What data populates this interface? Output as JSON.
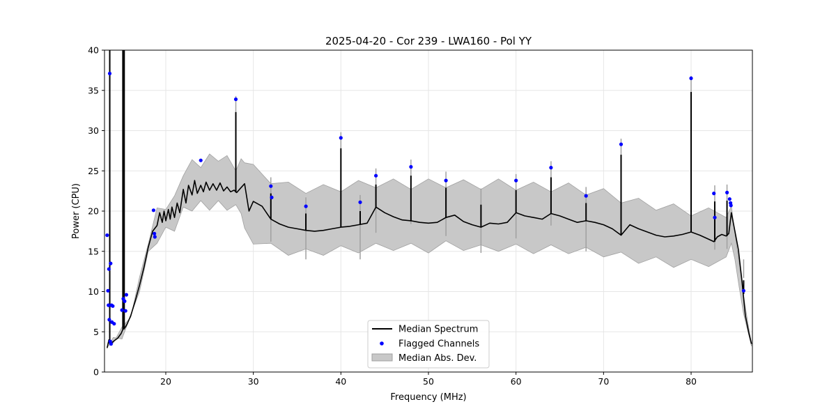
{
  "chart_data": {
    "type": "line",
    "title": "2025-04-20 - Cor 239 - LWA160 - Pol YY",
    "xlabel": "Frequency (MHz)",
    "ylabel": "Power (CPU)",
    "xlim": [
      13,
      87
    ],
    "ylim": [
      0,
      40
    ],
    "xticks": [
      20,
      30,
      40,
      50,
      60,
      70,
      80
    ],
    "yticks": [
      0,
      5,
      10,
      15,
      20,
      25,
      30,
      35,
      40
    ],
    "grid": true,
    "legend": {
      "placement": "bottom-center",
      "entries": [
        "Median Spectrum",
        "Flagged Channels",
        "Median Abs. Dev."
      ]
    },
    "colors": {
      "median": "#000000",
      "flagged": "#0000ff",
      "mad_fill": "#c8c8c8",
      "mad_edge": "#a0a0a0"
    },
    "series": [
      {
        "name": "Median Spectrum",
        "x": [
          13.3,
          13.5,
          13.55,
          13.7,
          14,
          14.5,
          14.9,
          15.1,
          15.4,
          15.6,
          16,
          16.5,
          17,
          17.5,
          18,
          18.5,
          19,
          19.3,
          19.6,
          19.8,
          20,
          20.3,
          20.5,
          20.7,
          21,
          21.3,
          21.6,
          22,
          22.3,
          22.6,
          23,
          23.3,
          23.6,
          24,
          24.3,
          24.6,
          25,
          25.4,
          25.8,
          26.2,
          26.6,
          27,
          27.4,
          27.8,
          28.1,
          28.5,
          29,
          29.5,
          30,
          31,
          32,
          33,
          34,
          35,
          36,
          37,
          38,
          39,
          40,
          41,
          42,
          43,
          44,
          45,
          46,
          47,
          48,
          49,
          50,
          51,
          52,
          53,
          54,
          55,
          56,
          57,
          58,
          59,
          60,
          61,
          62,
          63,
          64,
          65,
          66,
          67,
          68,
          69,
          70,
          71,
          72,
          73,
          74,
          75,
          76,
          77,
          78,
          79,
          80,
          81,
          82,
          82.6,
          83,
          83.5,
          84,
          84.3,
          84.6,
          85,
          85.4,
          85.8,
          86.2,
          86.6,
          86.9
        ],
        "y": [
          3.0,
          4.0,
          3.6,
          3.5,
          3.8,
          4.2,
          4.8,
          5.3,
          5.6,
          6.0,
          7.0,
          8.8,
          10.8,
          13.0,
          15.5,
          17.5,
          18.2,
          19.8,
          18.6,
          20.0,
          18.8,
          20.2,
          19.0,
          20.5,
          19.2,
          21.0,
          19.8,
          22.7,
          21.0,
          23.2,
          22.0,
          23.8,
          22.2,
          23.2,
          22.4,
          23.6,
          22.6,
          23.4,
          22.6,
          23.5,
          22.5,
          23.0,
          22.4,
          22.6,
          22.3,
          22.8,
          23.4,
          20.0,
          21.2,
          20.6,
          19.0,
          18.4,
          18.0,
          17.8,
          17.6,
          17.5,
          17.6,
          17.8,
          18.0,
          18.1,
          18.3,
          18.5,
          20.5,
          19.8,
          19.3,
          18.9,
          18.8,
          18.6,
          18.5,
          18.6,
          19.2,
          19.5,
          18.7,
          18.3,
          18.0,
          18.5,
          18.4,
          18.6,
          19.8,
          19.4,
          19.2,
          19.0,
          19.7,
          19.4,
          19.0,
          18.6,
          18.8,
          18.6,
          18.3,
          17.8,
          17.0,
          18.3,
          17.8,
          17.4,
          17.0,
          16.8,
          16.9,
          17.1,
          17.4,
          17.0,
          16.5,
          16.2,
          16.8,
          17.1,
          16.9,
          17.2,
          19.8,
          17.5,
          15.2,
          11.4,
          7.0,
          4.8,
          3.5
        ],
        "spikes": [
          {
            "x": 13.6,
            "y": 40.0
          },
          {
            "x": 15.1,
            "y": 40.0
          },
          {
            "x": 15.25,
            "y": 40.0
          },
          {
            "x": 28.0,
            "y": 32.3
          },
          {
            "x": 32.0,
            "y": 22.2
          },
          {
            "x": 36.0,
            "y": 19.7
          },
          {
            "x": 40.0,
            "y": 27.8
          },
          {
            "x": 42.2,
            "y": 20.0
          },
          {
            "x": 44.0,
            "y": 23.3
          },
          {
            "x": 48.0,
            "y": 24.4
          },
          {
            "x": 52.0,
            "y": 22.9
          },
          {
            "x": 56.0,
            "y": 20.8
          },
          {
            "x": 60.0,
            "y": 22.6
          },
          {
            "x": 64.0,
            "y": 24.2
          },
          {
            "x": 68.0,
            "y": 21.0
          },
          {
            "x": 72.0,
            "y": 27.0
          },
          {
            "x": 80.0,
            "y": 34.8
          },
          {
            "x": 82.7,
            "y": 21.2
          },
          {
            "x": 84.1,
            "y": 21.3
          },
          {
            "x": 86.0,
            "y": 9.7
          }
        ]
      },
      {
        "name": "Median Abs. Dev.",
        "x": [
          13.3,
          14,
          15,
          16,
          17,
          18,
          19,
          20,
          21,
          22,
          23,
          24,
          25,
          26,
          27,
          28,
          28.6,
          29,
          30,
          32,
          34,
          36,
          38,
          40,
          42,
          44,
          46,
          48,
          50,
          52,
          54,
          56,
          58,
          60,
          62,
          64,
          66,
          68,
          70,
          72,
          74,
          76,
          78,
          80,
          82,
          84,
          84.6,
          85,
          85.5,
          86,
          86.5,
          86.9
        ],
        "upper": [
          3.2,
          4.2,
          5.0,
          7.4,
          11.2,
          16.5,
          19.8,
          20.8,
          21.3,
          25.0,
          25.8,
          26.0,
          26.5,
          26.8,
          26.3,
          25.6,
          25.9,
          26.6,
          25.2,
          24.0,
          23.0,
          22.8,
          22.7,
          23.0,
          23.2,
          23.5,
          23.4,
          23.3,
          23.4,
          23.5,
          23.3,
          23.3,
          23.4,
          23.2,
          23.0,
          23.0,
          22.9,
          22.6,
          22.2,
          21.6,
          21.0,
          20.7,
          20.3,
          20.0,
          19.8,
          19.8,
          20.6,
          17.2,
          13.5,
          9.5,
          6.0,
          3.6
        ],
        "lower": [
          3.0,
          3.8,
          4.6,
          6.6,
          10.5,
          14.5,
          16.5,
          17.5,
          18.0,
          20.0,
          20.5,
          20.8,
          20.6,
          20.8,
          20.6,
          20.3,
          20.2,
          17.4,
          16.4,
          15.5,
          15.0,
          14.8,
          15.0,
          15.2,
          15.3,
          15.5,
          15.6,
          15.5,
          15.3,
          15.8,
          15.6,
          15.3,
          15.5,
          15.4,
          15.2,
          15.3,
          15.2,
          15.0,
          14.8,
          14.4,
          14.0,
          13.8,
          13.5,
          13.5,
          13.6,
          13.8,
          16.0,
          14.0,
          10.5,
          7.2,
          5.0,
          3.2
        ]
      },
      {
        "name": "Flagged Channels",
        "x": [
          13.3,
          13.4,
          13.5,
          13.6,
          13.7,
          13.8,
          13.45,
          13.55,
          13.65,
          13.75,
          13.85,
          13.95,
          14.1,
          15.0,
          15.15,
          15.3,
          15.4,
          15.5,
          18.6,
          18.7,
          18.75,
          24.0,
          28.0,
          32.0,
          32.1,
          36.0,
          40.0,
          42.2,
          44.0,
          48.0,
          52.0,
          60.0,
          64.0,
          68.0,
          72.0,
          80.0,
          82.6,
          82.7,
          84.1,
          84.4,
          84.5,
          84.55,
          86.0
        ],
        "y": [
          17.0,
          10.1,
          12.8,
          37.1,
          13.5,
          8.3,
          8.3,
          6.5,
          3.8,
          3.5,
          6.2,
          8.2,
          6.0,
          7.7,
          9.1,
          8.8,
          7.6,
          9.6,
          20.1,
          17.2,
          16.8,
          26.3,
          33.9,
          23.1,
          21.7,
          20.6,
          29.1,
          21.1,
          24.4,
          25.5,
          23.8,
          23.8,
          25.4,
          21.9,
          28.3,
          36.5,
          22.2,
          19.2,
          22.3,
          21.5,
          21.0,
          20.7,
          10.1
        ]
      }
    ]
  }
}
